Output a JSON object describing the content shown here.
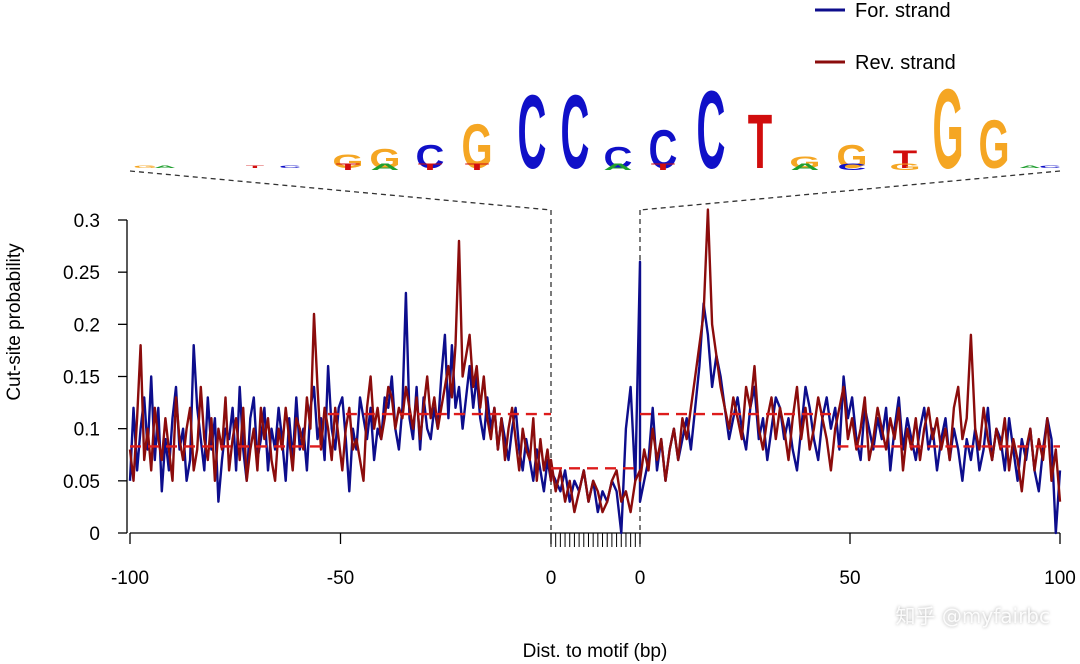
{
  "chart_data": {
    "type": "line",
    "xlabel": "Dist. to motif (bp)",
    "ylabel": "Cut-site probability",
    "xlim": [
      -100,
      100
    ],
    "ylim": [
      0,
      0.3
    ],
    "x_tick_labels": [
      "-100",
      "-50",
      "0",
      "0",
      "50",
      "100"
    ],
    "y_tick_labels": [
      "0",
      "0.05",
      "0.1",
      "0.15",
      "0.2",
      "0.25",
      "0.3"
    ],
    "motif_width_bp": 20,
    "motif_consensus": "GCGCCCCCTGGTGG",
    "series": [
      {
        "name": "For. strand",
        "color": "#0d0d8c",
        "left_values": [
          0.05,
          0.12,
          0.06,
          0.1,
          0.13,
          0.08,
          0.15,
          0.07,
          0.12,
          0.04,
          0.09,
          0.06,
          0.11,
          0.14,
          0.08,
          0.1,
          0.05,
          0.07,
          0.18,
          0.12,
          0.09,
          0.06,
          0.13,
          0.08,
          0.11,
          0.03,
          0.07,
          0.1,
          0.09,
          0.12,
          0.06,
          0.14,
          0.08,
          0.05,
          0.11,
          0.13,
          0.07,
          0.09,
          0.12,
          0.06,
          0.1,
          0.08,
          0.12,
          0.09,
          0.05,
          0.11,
          0.07,
          0.13,
          0.08,
          0.1,
          0.06,
          0.12,
          0.14,
          0.09,
          0.11,
          0.07,
          0.16,
          0.1,
          0.08,
          0.12,
          0.13,
          0.09,
          0.04,
          0.1,
          0.08,
          0.13,
          0.11,
          0.09,
          0.12,
          0.07,
          0.1,
          0.09,
          0.13,
          0.12,
          0.15,
          0.1,
          0.08,
          0.12,
          0.23,
          0.11,
          0.09,
          0.14,
          0.08,
          0.13,
          0.1,
          0.09,
          0.12,
          0.1,
          0.15,
          0.19,
          0.11,
          0.18,
          0.12,
          0.14,
          0.1,
          0.13,
          0.16,
          0.12,
          0.15,
          0.11,
          0.09,
          0.13,
          0.1,
          0.12,
          0.08,
          0.11,
          0.09,
          0.07,
          0.1,
          0.12,
          0.08,
          0.06,
          0.09,
          0.07,
          0.05,
          0.08,
          0.06,
          0.04,
          0.07,
          0.05
        ],
        "motif_values": [
          0.06,
          0.05,
          0.04,
          0.06,
          0.03,
          0.05,
          0.04,
          0.06,
          0.03,
          0.05,
          0.02,
          0.04,
          0.03,
          0.05,
          0.04,
          0.0,
          0.1,
          0.14,
          0.05,
          0.26
        ],
        "right_values": [
          0.03,
          0.05,
          0.07,
          0.12,
          0.06,
          0.09,
          0.05,
          0.08,
          0.1,
          0.07,
          0.09,
          0.11,
          0.08,
          0.12,
          0.16,
          0.22,
          0.19,
          0.14,
          0.17,
          0.15,
          0.12,
          0.09,
          0.11,
          0.13,
          0.1,
          0.08,
          0.12,
          0.14,
          0.09,
          0.11,
          0.07,
          0.1,
          0.13,
          0.12,
          0.09,
          0.11,
          0.08,
          0.06,
          0.1,
          0.14,
          0.12,
          0.09,
          0.07,
          0.11,
          0.13,
          0.1,
          0.12,
          0.08,
          0.15,
          0.11,
          0.13,
          0.09,
          0.07,
          0.12,
          0.1,
          0.08,
          0.11,
          0.09,
          0.12,
          0.06,
          0.1,
          0.13,
          0.08,
          0.11,
          0.09,
          0.07,
          0.1,
          0.12,
          0.08,
          0.1,
          0.06,
          0.09,
          0.11,
          0.07,
          0.1,
          0.08,
          0.05,
          0.09,
          0.07,
          0.1,
          0.06,
          0.08,
          0.12,
          0.07,
          0.1,
          0.09,
          0.06,
          0.11,
          0.08,
          0.05,
          0.09,
          0.07,
          0.1,
          0.06,
          0.04,
          0.08,
          0.11,
          0.09,
          0.0,
          0.06
        ]
      },
      {
        "name": "Rev. strand",
        "color": "#8b0c0c",
        "left_values": [
          0.08,
          0.05,
          0.11,
          0.18,
          0.07,
          0.1,
          0.06,
          0.12,
          0.09,
          0.07,
          0.11,
          0.08,
          0.05,
          0.13,
          0.09,
          0.07,
          0.1,
          0.12,
          0.06,
          0.08,
          0.14,
          0.09,
          0.07,
          0.11,
          0.05,
          0.1,
          0.08,
          0.13,
          0.06,
          0.09,
          0.11,
          0.07,
          0.12,
          0.05,
          0.08,
          0.1,
          0.06,
          0.12,
          0.09,
          0.11,
          0.07,
          0.05,
          0.1,
          0.08,
          0.12,
          0.09,
          0.06,
          0.11,
          0.1,
          0.08,
          0.13,
          0.1,
          0.21,
          0.14,
          0.08,
          0.12,
          0.1,
          0.07,
          0.12,
          0.09,
          0.06,
          0.1,
          0.12,
          0.08,
          0.09,
          0.07,
          0.05,
          0.12,
          0.15,
          0.1,
          0.12,
          0.09,
          0.11,
          0.14,
          0.13,
          0.1,
          0.12,
          0.11,
          0.14,
          0.12,
          0.1,
          0.13,
          0.09,
          0.12,
          0.15,
          0.11,
          0.13,
          0.1,
          0.12,
          0.14,
          0.16,
          0.13,
          0.18,
          0.28,
          0.15,
          0.17,
          0.19,
          0.14,
          0.16,
          0.12,
          0.15,
          0.11,
          0.09,
          0.12,
          0.08,
          0.11,
          0.07,
          0.1,
          0.12,
          0.09,
          0.06,
          0.1,
          0.08,
          0.07,
          0.11,
          0.05,
          0.09,
          0.06,
          0.08,
          0.05
        ],
        "motif_values": [
          0.07,
          0.04,
          0.06,
          0.03,
          0.05,
          0.02,
          0.04,
          0.06,
          0.03,
          0.05,
          0.04,
          0.02,
          0.03,
          0.05,
          0.06,
          0.03,
          0.04,
          0.02,
          0.05,
          0.06
        ],
        "right_values": [
          0.05,
          0.08,
          0.06,
          0.1,
          0.07,
          0.09,
          0.05,
          0.08,
          0.1,
          0.07,
          0.11,
          0.09,
          0.12,
          0.15,
          0.18,
          0.21,
          0.31,
          0.2,
          0.17,
          0.14,
          0.12,
          0.1,
          0.13,
          0.11,
          0.09,
          0.14,
          0.12,
          0.16,
          0.1,
          0.08,
          0.11,
          0.13,
          0.09,
          0.12,
          0.1,
          0.07,
          0.11,
          0.14,
          0.09,
          0.12,
          0.08,
          0.1,
          0.13,
          0.11,
          0.09,
          0.06,
          0.1,
          0.12,
          0.14,
          0.09,
          0.11,
          0.08,
          0.1,
          0.13,
          0.07,
          0.09,
          0.12,
          0.1,
          0.08,
          0.11,
          0.09,
          0.12,
          0.06,
          0.1,
          0.08,
          0.11,
          0.07,
          0.1,
          0.12,
          0.09,
          0.11,
          0.08,
          0.1,
          0.07,
          0.12,
          0.14,
          0.09,
          0.11,
          0.19,
          0.1,
          0.08,
          0.12,
          0.09,
          0.07,
          0.1,
          0.08,
          0.11,
          0.06,
          0.09,
          0.07,
          0.04,
          0.08,
          0.1,
          0.06,
          0.09,
          0.07,
          0.11,
          0.05,
          0.08,
          0.03
        ]
      }
    ],
    "mean_lines": {
      "color": "#dd1c1c",
      "segments": [
        {
          "x": [
            -100,
            -53
          ],
          "y": 0.083
        },
        {
          "x": [
            -53,
            0
          ],
          "y": 0.114
        },
        {
          "x": [
            0,
            20
          ],
          "y": 0.062
        },
        {
          "x": [
            0,
            47
          ],
          "y": 0.114
        },
        {
          "x": [
            47,
            100
          ],
          "y": 0.083
        }
      ]
    }
  },
  "legend": {
    "for_label": "For. strand",
    "rev_label": "Rev. strand"
  },
  "watermark": "知乎 @myfairbc"
}
